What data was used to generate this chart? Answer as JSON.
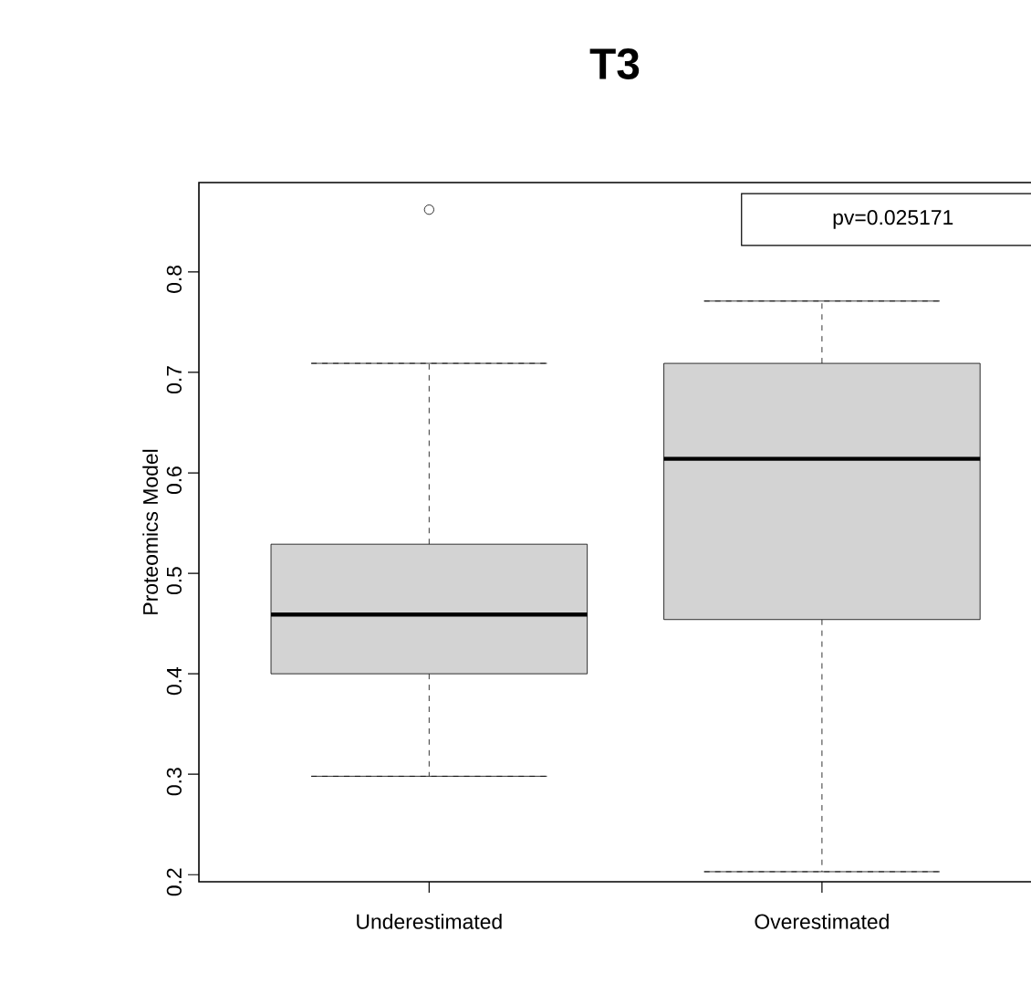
{
  "chart_data": {
    "type": "box",
    "title": "T3",
    "ylabel": "Proteomics Model",
    "categories": [
      "Underestimated",
      "Overestimated"
    ],
    "series": [
      {
        "color": "#d3d3d3",
        "boxes": [
          {
            "low": 0.298,
            "q1": 0.4,
            "median": 0.459,
            "q3": 0.529,
            "high": 0.709,
            "outliers": [
              0.862
            ]
          },
          {
            "low": 0.203,
            "q1": 0.454,
            "median": 0.614,
            "q3": 0.709,
            "high": 0.771
          }
        ]
      }
    ],
    "ylim": [
      0.193,
      0.889
    ],
    "yticks": [
      0.2,
      0.3,
      0.4,
      0.5,
      0.6,
      0.7,
      0.8
    ],
    "annotations": [
      "pv=0.025171"
    ]
  }
}
